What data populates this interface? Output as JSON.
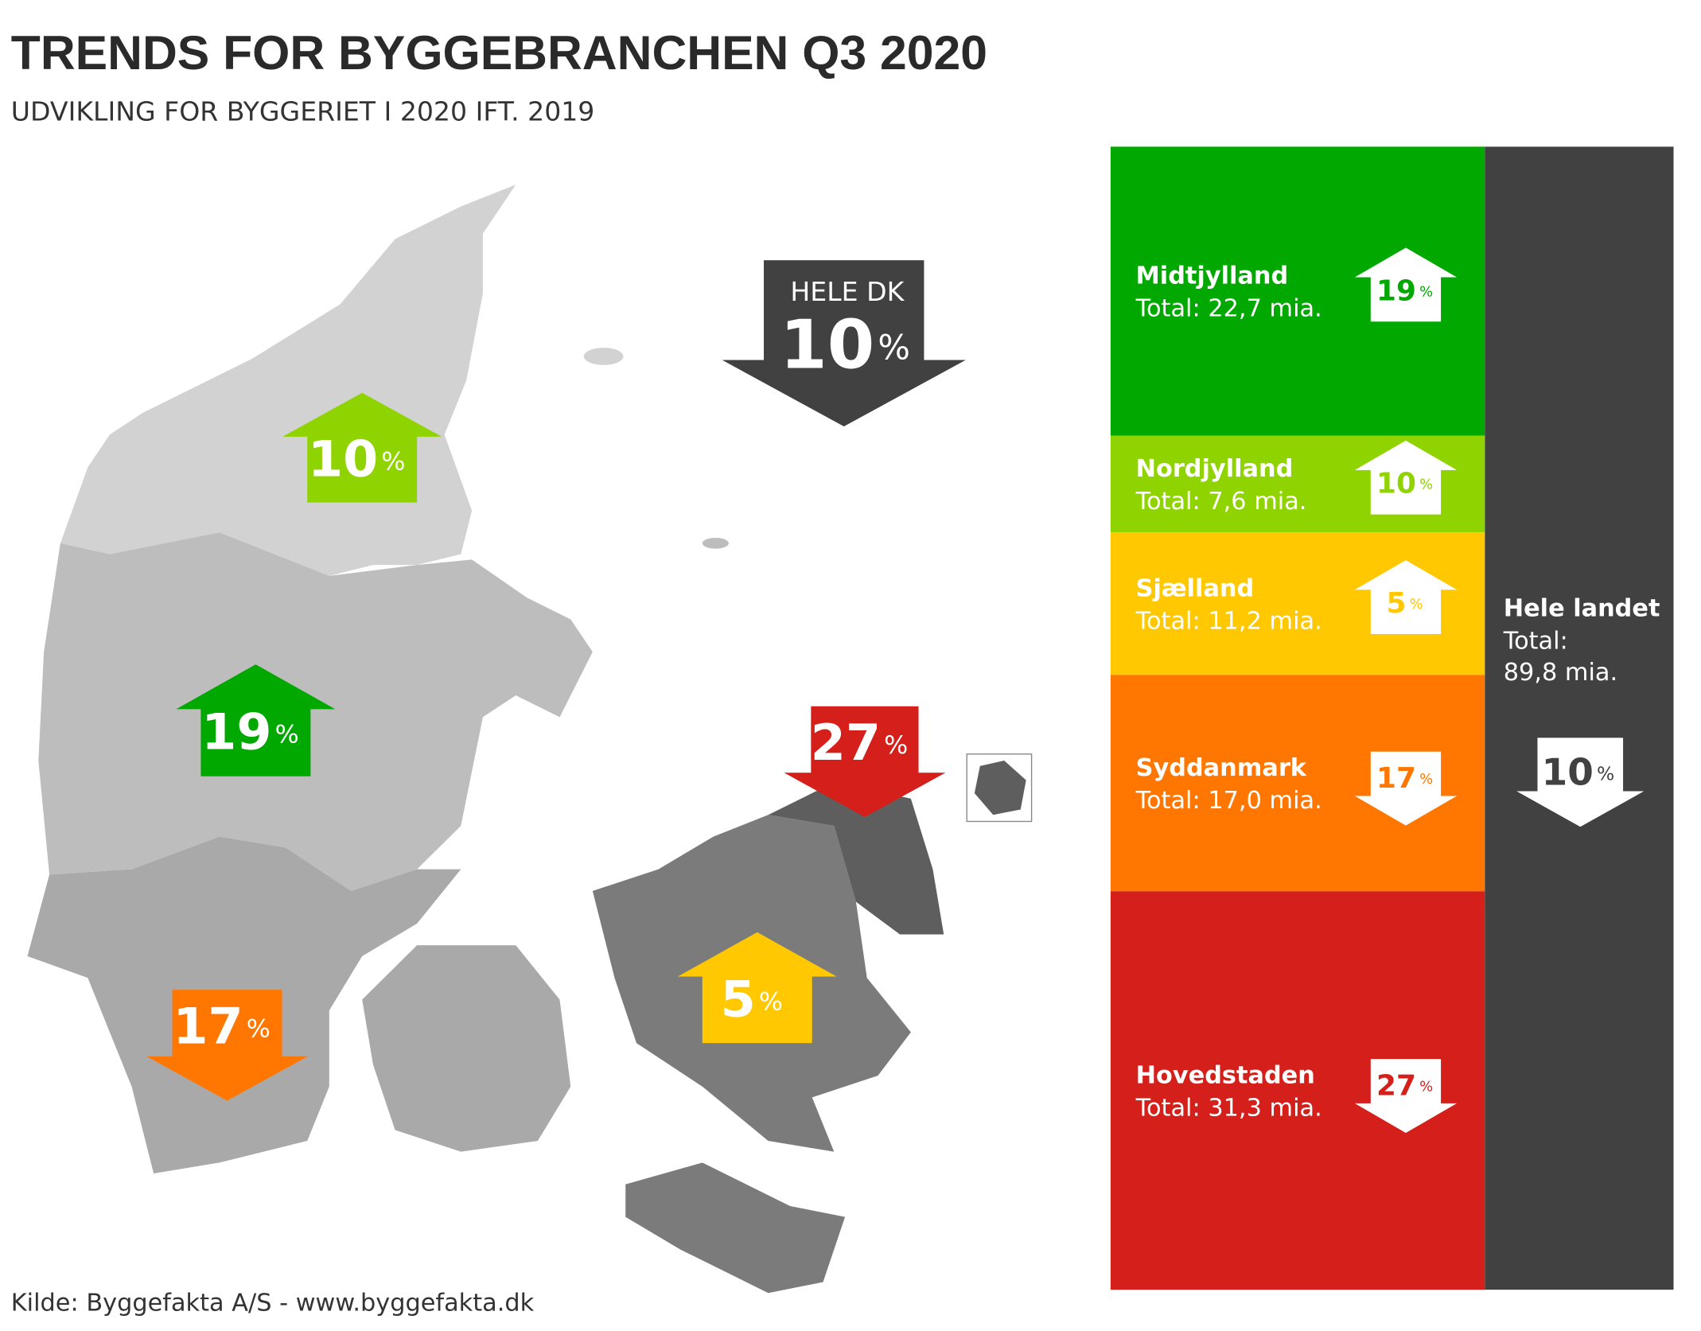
{
  "header": {
    "title": "TRENDS FOR BYGGEBRANCHEN Q3 2020",
    "subtitle": "UDVIKLING FOR BYGGERIET I 2020 IFT. 2019"
  },
  "unit": "%",
  "regions": [
    {
      "name": "Midtjylland",
      "total": 22.7,
      "total_label": "Total: 22,7 mia.",
      "change": 19,
      "direction": "up",
      "color": "#00a800"
    },
    {
      "name": "Nordjylland",
      "total": 7.6,
      "total_label": "Total: 7,6 mia.",
      "change": 10,
      "direction": "up",
      "color": "#8fd400"
    },
    {
      "name": "Sjælland",
      "total": 11.2,
      "total_label": "Total: 11,2 mia.",
      "change": 5,
      "direction": "up",
      "color": "#ffc800"
    },
    {
      "name": "Syddanmark",
      "total": 17.0,
      "total_label": "Total: 17,0 mia.",
      "change": 17,
      "direction": "down",
      "color": "#ff7700"
    },
    {
      "name": "Hovedstaden",
      "total": 31.3,
      "total_label": "Total: 31,3 mia.",
      "change": 27,
      "direction": "down",
      "color": "#d41f1a"
    }
  ],
  "national": {
    "map_label": "HELE DK",
    "name": "Hele landet",
    "total": 89.8,
    "total_label": [
      "Total:",
      "89,8 mia."
    ],
    "change": 10,
    "direction": "down",
    "color": "#414141"
  },
  "source": "Kilde: Byggefakta A/S - www.byggefakta.dk"
}
